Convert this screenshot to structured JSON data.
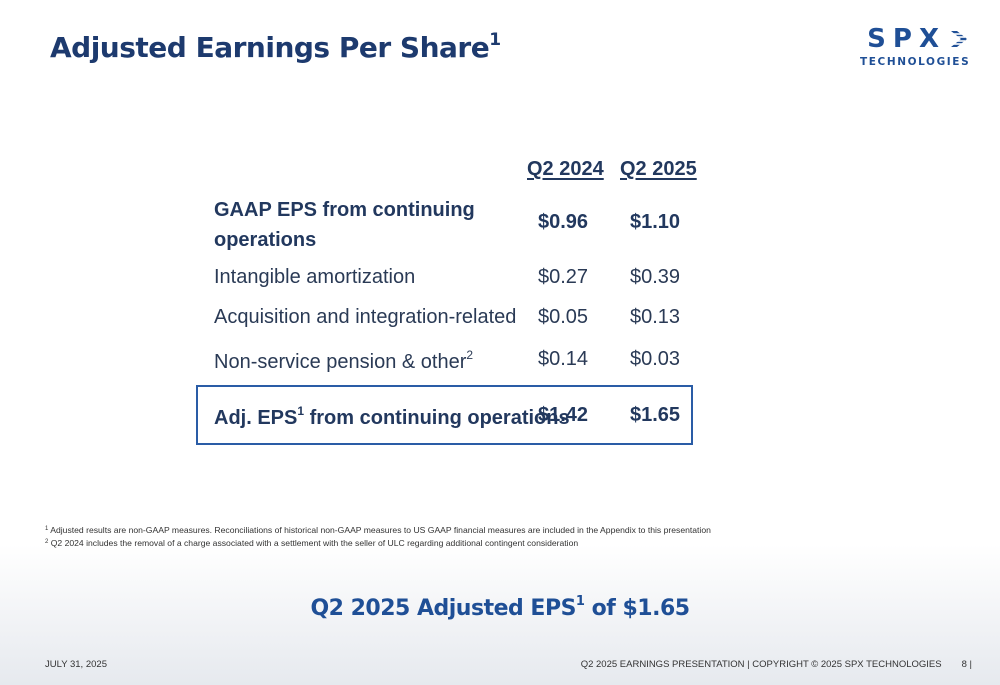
{
  "header": {
    "title": "Adjusted Earnings Per Share",
    "title_sup": "1"
  },
  "logo": {
    "main": "SPX",
    "sub": "TECHNOLOGIES",
    "icon": "spx-chevrons-icon",
    "color": "#1f4f96"
  },
  "table": {
    "col1": "Q2 2024",
    "col2": "Q2 2025",
    "rows": [
      {
        "label_line1": "GAAP EPS from continuing",
        "label_line2": "operations",
        "v1": "$0.96",
        "v2": "$1.10"
      },
      {
        "label": "Intangible amortization",
        "v1": "$0.27",
        "v2": "$0.39"
      },
      {
        "label": "Acquisition and integration-related",
        "v1": "$0.05",
        "v2": "$0.13"
      },
      {
        "label": "Non-service pension & other",
        "sup": "2",
        "v1": "$0.14",
        "v2": "$0.03"
      }
    ],
    "total": {
      "label_a": "Adj. EPS",
      "sup": "1",
      "label_b": " from continuing operations",
      "v1": "$1.42",
      "v2": "$1.65"
    }
  },
  "footnotes": [
    {
      "num": "1",
      "text": " Adjusted results are non-GAAP measures.  Reconciliations of historical non-GAAP measures to US GAAP financial measures are included in the Appendix to this presentation"
    },
    {
      "num": "2",
      "text": " Q2 2024 includes the removal of a charge associated with a settlement with the seller of ULC regarding additional contingent consideration"
    }
  ],
  "highlight": {
    "text_a": "Q2 2025 Adjusted EPS",
    "sup": "1",
    "text_b": " of $1.65"
  },
  "footer": {
    "date": "JULY 31, 2025",
    "right": "Q2 2025 EARNINGS PRESENTATION | COPYRIGHT © 2025 SPX TECHNOLOGIES",
    "page": "8 |"
  },
  "colors": {
    "title": "#1d3a6e",
    "accent": "#1f4f96",
    "box_border": "#2a5ca6"
  }
}
